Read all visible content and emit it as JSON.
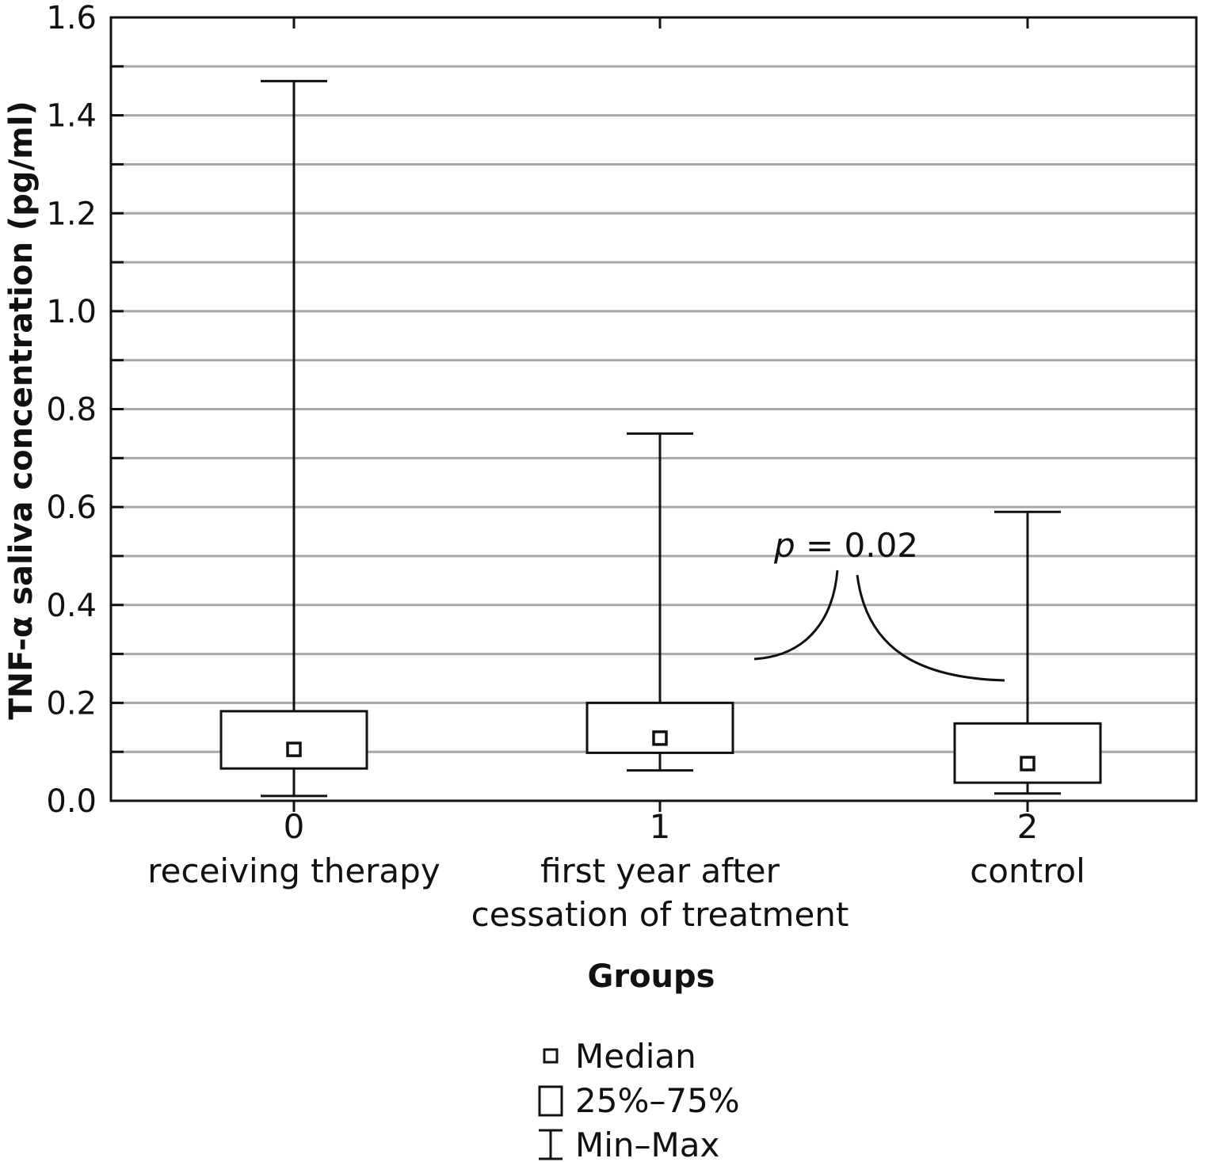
{
  "chart_data": {
    "type": "box",
    "xlabel": "Groups",
    "ylabel": "TNF-α saliva concentration (pg/ml)",
    "ylim": [
      0,
      1.6
    ],
    "yticks": [
      "0.0",
      "0.2",
      "0.4",
      "0.6",
      "0.8",
      "1.0",
      "1.2",
      "1.4",
      "1.6"
    ],
    "grid": true,
    "categories": [
      {
        "code": "0",
        "lines": [
          "receiving therapy"
        ]
      },
      {
        "code": "1",
        "lines": [
          "first year after",
          "cessation of treatment"
        ]
      },
      {
        "code": "2",
        "lines": [
          "control"
        ]
      }
    ],
    "boxes": [
      {
        "min": 0.01,
        "q1": 0.066,
        "median": 0.105,
        "q3": 0.183,
        "max": 1.47
      },
      {
        "min": 0.062,
        "q1": 0.098,
        "median": 0.128,
        "q3": 0.2,
        "max": 0.75
      },
      {
        "min": 0.015,
        "q1": 0.037,
        "median": 0.076,
        "q3": 0.158,
        "max": 0.59
      }
    ],
    "annotation": {
      "italic": "p",
      "text": " = 0.02",
      "between": [
        "1",
        "2"
      ]
    },
    "legend": [
      {
        "symbol": "median",
        "label": "Median"
      },
      {
        "symbol": "box",
        "label": "25%–75%"
      },
      {
        "symbol": "whisker",
        "label": "Min–Max"
      }
    ]
  }
}
